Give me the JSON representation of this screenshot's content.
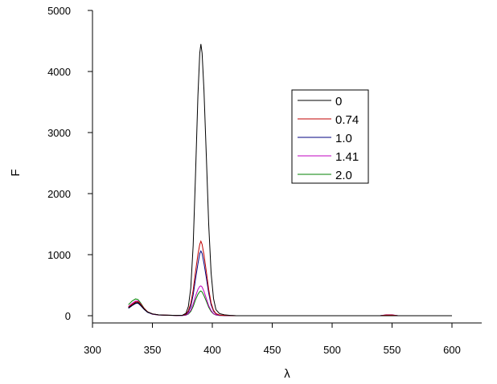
{
  "chart_data": {
    "type": "line",
    "title": "",
    "xlabel": "λ",
    "ylabel": "F",
    "xlim": [
      300,
      625
    ],
    "ylim": [
      -100,
      5100
    ],
    "xticks": [
      300,
      350,
      400,
      450,
      500,
      550,
      600
    ],
    "yticks": [
      0,
      1000,
      2000,
      3000,
      4000,
      5000
    ],
    "x_tick_labels": [
      "300",
      "350",
      "400",
      "450",
      "500",
      "550",
      "600"
    ],
    "y_tick_labels": [
      "0",
      "1000",
      "2000",
      "3000",
      "4000",
      "5000"
    ],
    "grid": false,
    "legend": "top-right",
    "series": [
      {
        "name": "0",
        "color": "#000000",
        "points": [
          [
            330,
            130
          ],
          [
            333,
            170
          ],
          [
            336,
            210
          ],
          [
            338,
            215
          ],
          [
            340,
            180
          ],
          [
            343,
            110
          ],
          [
            346,
            60
          ],
          [
            350,
            30
          ],
          [
            355,
            15
          ],
          [
            360,
            10
          ],
          [
            370,
            5
          ],
          [
            375,
            8
          ],
          [
            378,
            40
          ],
          [
            380,
            150
          ],
          [
            382,
            450
          ],
          [
            384,
            1150
          ],
          [
            386,
            2300
          ],
          [
            388,
            3600
          ],
          [
            389.5,
            4300
          ],
          [
            390.5,
            4450
          ],
          [
            391.5,
            4300
          ],
          [
            393,
            3700
          ],
          [
            395,
            2600
          ],
          [
            397,
            1500
          ],
          [
            399,
            700
          ],
          [
            401,
            280
          ],
          [
            403,
            100
          ],
          [
            406,
            35
          ],
          [
            410,
            15
          ],
          [
            415,
            5
          ],
          [
            420,
            0
          ],
          [
            450,
            0
          ],
          [
            500,
            0
          ],
          [
            545,
            0
          ],
          [
            600,
            0
          ]
        ]
      },
      {
        "name": "0.74",
        "color": "#c00000",
        "points": [
          [
            330,
            140
          ],
          [
            333,
            185
          ],
          [
            336,
            225
          ],
          [
            338,
            230
          ],
          [
            340,
            195
          ],
          [
            343,
            120
          ],
          [
            346,
            65
          ],
          [
            350,
            30
          ],
          [
            355,
            15
          ],
          [
            360,
            10
          ],
          [
            370,
            5
          ],
          [
            375,
            6
          ],
          [
            378,
            25
          ],
          [
            380,
            80
          ],
          [
            382,
            200
          ],
          [
            384,
            420
          ],
          [
            386,
            720
          ],
          [
            388,
            1000
          ],
          [
            389.5,
            1170
          ],
          [
            390.5,
            1220
          ],
          [
            391.5,
            1170
          ],
          [
            393,
            1000
          ],
          [
            395,
            720
          ],
          [
            397,
            430
          ],
          [
            399,
            210
          ],
          [
            401,
            90
          ],
          [
            403,
            35
          ],
          [
            406,
            12
          ],
          [
            410,
            5
          ],
          [
            420,
            0
          ],
          [
            450,
            0
          ],
          [
            540,
            0
          ],
          [
            545,
            12
          ],
          [
            550,
            12
          ],
          [
            555,
            0
          ],
          [
            600,
            0
          ]
        ]
      },
      {
        "name": "1.0",
        "color": "#000080",
        "points": [
          [
            330,
            120
          ],
          [
            333,
            165
          ],
          [
            336,
            200
          ],
          [
            338,
            205
          ],
          [
            340,
            170
          ],
          [
            343,
            105
          ],
          [
            346,
            55
          ],
          [
            350,
            28
          ],
          [
            355,
            14
          ],
          [
            360,
            10
          ],
          [
            370,
            5
          ],
          [
            375,
            5
          ],
          [
            378,
            18
          ],
          [
            380,
            60
          ],
          [
            382,
            150
          ],
          [
            384,
            340
          ],
          [
            386,
            600
          ],
          [
            388,
            850
          ],
          [
            389.5,
            1020
          ],
          [
            390.5,
            1060
          ],
          [
            391.5,
            1020
          ],
          [
            393,
            860
          ],
          [
            395,
            620
          ],
          [
            397,
            370
          ],
          [
            399,
            180
          ],
          [
            401,
            75
          ],
          [
            403,
            30
          ],
          [
            406,
            10
          ],
          [
            410,
            4
          ],
          [
            420,
            0
          ],
          [
            450,
            0
          ],
          [
            540,
            0
          ],
          [
            545,
            10
          ],
          [
            550,
            10
          ],
          [
            555,
            0
          ],
          [
            600,
            0
          ]
        ]
      },
      {
        "name": "1.41",
        "color": "#c000c0",
        "points": [
          [
            330,
            150
          ],
          [
            333,
            200
          ],
          [
            336,
            240
          ],
          [
            338,
            240
          ],
          [
            340,
            200
          ],
          [
            343,
            120
          ],
          [
            346,
            60
          ],
          [
            350,
            25
          ],
          [
            355,
            12
          ],
          [
            360,
            8
          ],
          [
            370,
            4
          ],
          [
            375,
            4
          ],
          [
            378,
            12
          ],
          [
            380,
            35
          ],
          [
            382,
            90
          ],
          [
            384,
            190
          ],
          [
            386,
            320
          ],
          [
            388,
            430
          ],
          [
            389.5,
            480
          ],
          [
            390.5,
            490
          ],
          [
            391.5,
            470
          ],
          [
            393,
            400
          ],
          [
            395,
            280
          ],
          [
            397,
            165
          ],
          [
            399,
            85
          ],
          [
            401,
            35
          ],
          [
            403,
            14
          ],
          [
            406,
            5
          ],
          [
            410,
            2
          ],
          [
            420,
            0
          ],
          [
            450,
            0
          ],
          [
            540,
            0
          ],
          [
            545,
            14
          ],
          [
            550,
            14
          ],
          [
            555,
            0
          ],
          [
            600,
            0
          ]
        ]
      },
      {
        "name": "2.0",
        "color": "#008000",
        "points": [
          [
            330,
            180
          ],
          [
            333,
            240
          ],
          [
            336,
            275
          ],
          [
            338,
            265
          ],
          [
            340,
            215
          ],
          [
            343,
            125
          ],
          [
            346,
            60
          ],
          [
            350,
            25
          ],
          [
            355,
            12
          ],
          [
            360,
            8
          ],
          [
            370,
            4
          ],
          [
            375,
            4
          ],
          [
            378,
            10
          ],
          [
            380,
            28
          ],
          [
            382,
            70
          ],
          [
            384,
            150
          ],
          [
            386,
            260
          ],
          [
            388,
            350
          ],
          [
            389.5,
            395
          ],
          [
            390.5,
            405
          ],
          [
            391.5,
            390
          ],
          [
            393,
            330
          ],
          [
            395,
            235
          ],
          [
            397,
            140
          ],
          [
            399,
            70
          ],
          [
            401,
            30
          ],
          [
            403,
            12
          ],
          [
            406,
            4
          ],
          [
            410,
            2
          ],
          [
            420,
            0
          ],
          [
            450,
            0
          ],
          [
            540,
            0
          ],
          [
            545,
            8
          ],
          [
            550,
            8
          ],
          [
            555,
            0
          ],
          [
            600,
            0
          ]
        ]
      }
    ]
  }
}
